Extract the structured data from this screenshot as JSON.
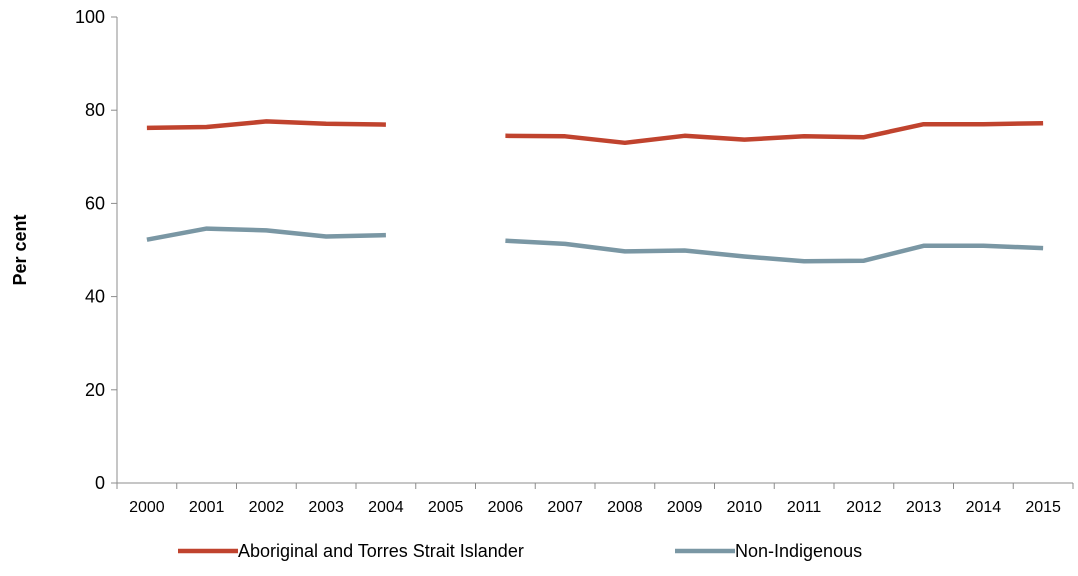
{
  "chart_data": {
    "type": "line",
    "title": "",
    "xlabel": "",
    "ylabel": "Per cent",
    "ylim": [
      0,
      100
    ],
    "yticks": [
      0,
      20,
      40,
      60,
      80,
      100
    ],
    "categories": [
      "2000",
      "2001",
      "2002",
      "2003",
      "2004",
      "2005",
      "2006",
      "2007",
      "2008",
      "2009",
      "2010",
      "2011",
      "2012",
      "2013",
      "2014",
      "2015"
    ],
    "grid": false,
    "legend_position": "bottom",
    "series": [
      {
        "name": "Aboriginal and Torres Strait Islander",
        "color": "#c0432e",
        "values": [
          76.2,
          76.4,
          77.6,
          77.1,
          76.9,
          null,
          74.5,
          74.4,
          73.0,
          74.5,
          73.7,
          74.4,
          74.2,
          77.0,
          77.0,
          77.2
        ]
      },
      {
        "name": "Non-Indigenous",
        "color": "#7a97a4",
        "values": [
          52.2,
          54.6,
          54.2,
          52.9,
          53.2,
          null,
          52.0,
          51.3,
          49.7,
          49.9,
          48.6,
          47.6,
          47.7,
          50.9,
          50.9,
          50.4
        ]
      }
    ]
  }
}
